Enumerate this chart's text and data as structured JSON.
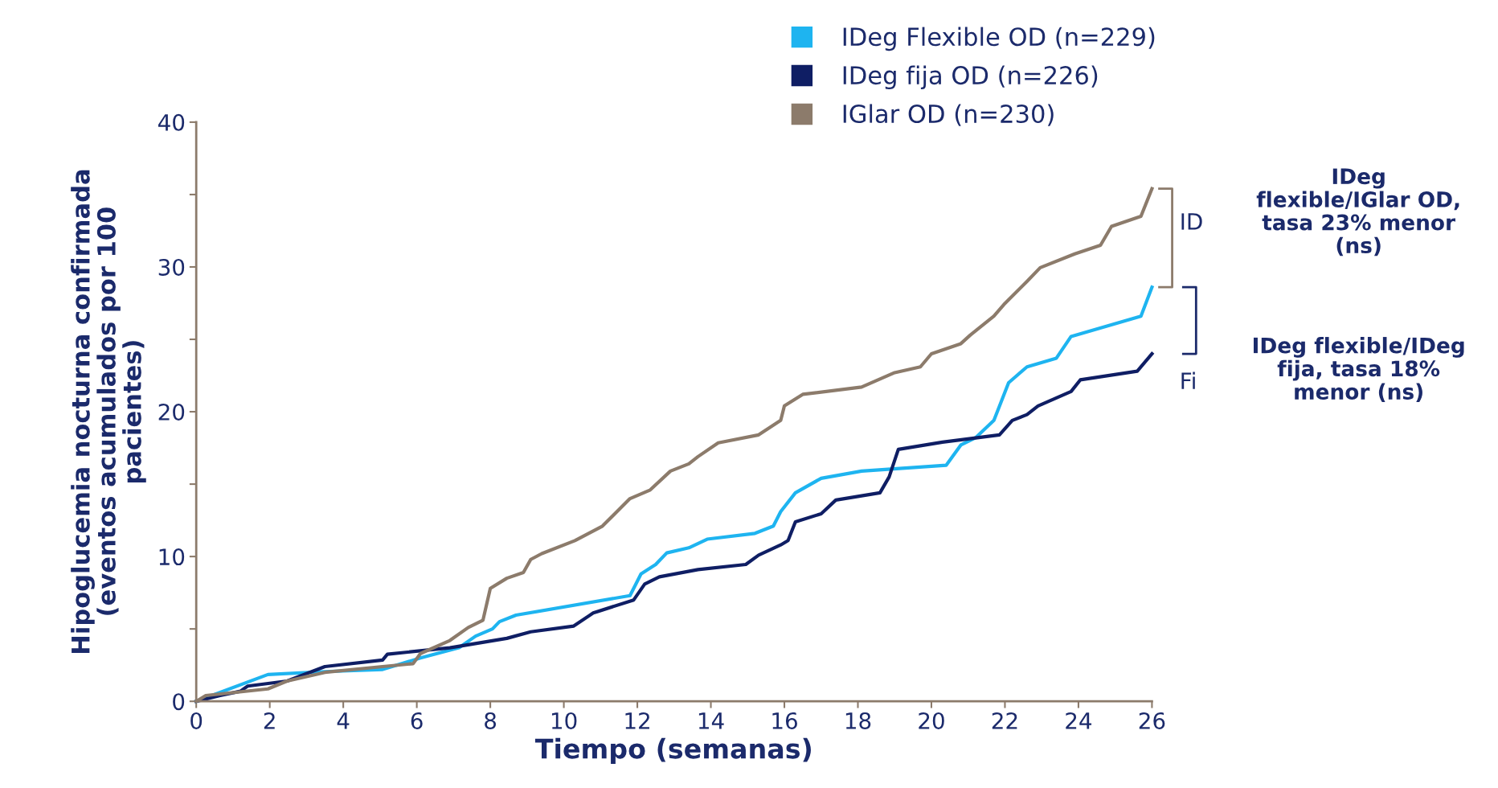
{
  "chart_data": {
    "type": "line",
    "xlabel": "Tiempo (semanas)",
    "ylabel": "Hipoglucemia nocturna confirmada\n(eventos acumulados por 100\npacientes)",
    "xlim": [
      0,
      26
    ],
    "ylim": [
      0,
      40
    ],
    "xticks": [
      0,
      2,
      4,
      6,
      8,
      10,
      12,
      14,
      16,
      18,
      20,
      22,
      24,
      26
    ],
    "yticks": [
      0,
      {
        "value": 5,
        "label": null
      },
      10,
      {
        "value": 15,
        "label": null
      },
      20,
      {
        "value": 25,
        "label": null
      },
      30,
      {
        "value": 35,
        "label": null
      },
      40
    ],
    "grid": false,
    "legend": "top right",
    "marker": "none",
    "line_style": "solid",
    "series": [
      {
        "name": "IDeg Flexible OD (n=229)",
        "color": "#1eb4f0",
        "x": [
          0,
          1.95,
          3.5,
          5.07,
          6.1,
          7.15,
          7.6,
          8.06,
          8.25,
          8.7,
          11.8,
          12.1,
          12.5,
          12.8,
          13.4,
          13.9,
          15.2,
          15.7,
          15.9,
          16.3,
          17.0,
          18.1,
          20.4,
          20.8,
          21.2,
          21.7,
          22.1,
          22.6,
          23.4,
          23.8,
          25.7,
          26
        ],
        "values": [
          0,
          1.85,
          2.05,
          2.2,
          3.0,
          3.7,
          4.5,
          5.0,
          5.5,
          5.95,
          7.3,
          8.8,
          9.45,
          10.25,
          10.6,
          11.2,
          11.6,
          12.1,
          13.1,
          14.4,
          15.4,
          15.9,
          16.3,
          17.7,
          18.2,
          19.4,
          22.0,
          23.1,
          23.7,
          25.2,
          26.6,
          28.6
        ]
      },
      {
        "name": "IDeg fija OD (n=226)",
        "color": "#0f1e64",
        "x": [
          0,
          0.65,
          1.2,
          1.4,
          2.47,
          3.5,
          5.07,
          5.2,
          6.9,
          8.45,
          9.1,
          10.27,
          10.8,
          11.9,
          12.2,
          12.6,
          13.65,
          14.95,
          15.3,
          15.9,
          16.1,
          16.3,
          17.0,
          17.4,
          18.6,
          18.85,
          19.1,
          20.3,
          21.85,
          22.2,
          22.6,
          22.9,
          23.8,
          24.05,
          25.6,
          26
        ],
        "values": [
          0,
          0.4,
          0.7,
          1.05,
          1.4,
          2.4,
          2.85,
          3.25,
          3.7,
          4.35,
          4.8,
          5.2,
          6.1,
          7.0,
          8.1,
          8.6,
          9.1,
          9.45,
          10.1,
          10.8,
          11.1,
          12.4,
          12.95,
          13.9,
          14.4,
          15.5,
          17.4,
          17.9,
          18.4,
          19.4,
          19.8,
          20.4,
          21.4,
          22.2,
          22.8,
          24.0
        ]
      },
      {
        "name": "IGlar OD (n=230)",
        "color": "#8c7b6b",
        "x": [
          0,
          0.26,
          1.95,
          2.47,
          3.5,
          5.07,
          5.9,
          6.1,
          6.9,
          7.4,
          7.8,
          8.0,
          8.45,
          8.9,
          9.1,
          9.4,
          10.3,
          11.05,
          11.8,
          12.35,
          12.9,
          13.4,
          13.65,
          14.2,
          15.3,
          15.9,
          16.0,
          16.5,
          18.1,
          19.0,
          19.7,
          20.0,
          20.8,
          21.06,
          21.7,
          21.97,
          22.6,
          22.96,
          23.9,
          24.6,
          24.9,
          25.7,
          26
        ],
        "values": [
          0,
          0.4,
          0.86,
          1.4,
          2.0,
          2.4,
          2.6,
          3.3,
          4.2,
          5.1,
          5.6,
          7.8,
          8.5,
          8.9,
          9.8,
          10.2,
          11.1,
          12.1,
          14.0,
          14.6,
          15.9,
          16.4,
          16.9,
          17.85,
          18.4,
          19.4,
          20.4,
          21.2,
          21.7,
          22.7,
          23.1,
          24.0,
          24.7,
          25.3,
          26.6,
          27.4,
          29.0,
          29.95,
          30.9,
          31.5,
          32.8,
          33.5,
          35.4
        ]
      }
    ],
    "annotations": [
      "ID",
      "Fi",
      "IDeg\nflexible/IGlar OD,\ntasa 23% menor\n(ns)",
      "IDeg flexible/IDeg\nfija, tasa 18%\nmenor (ns)"
    ]
  }
}
